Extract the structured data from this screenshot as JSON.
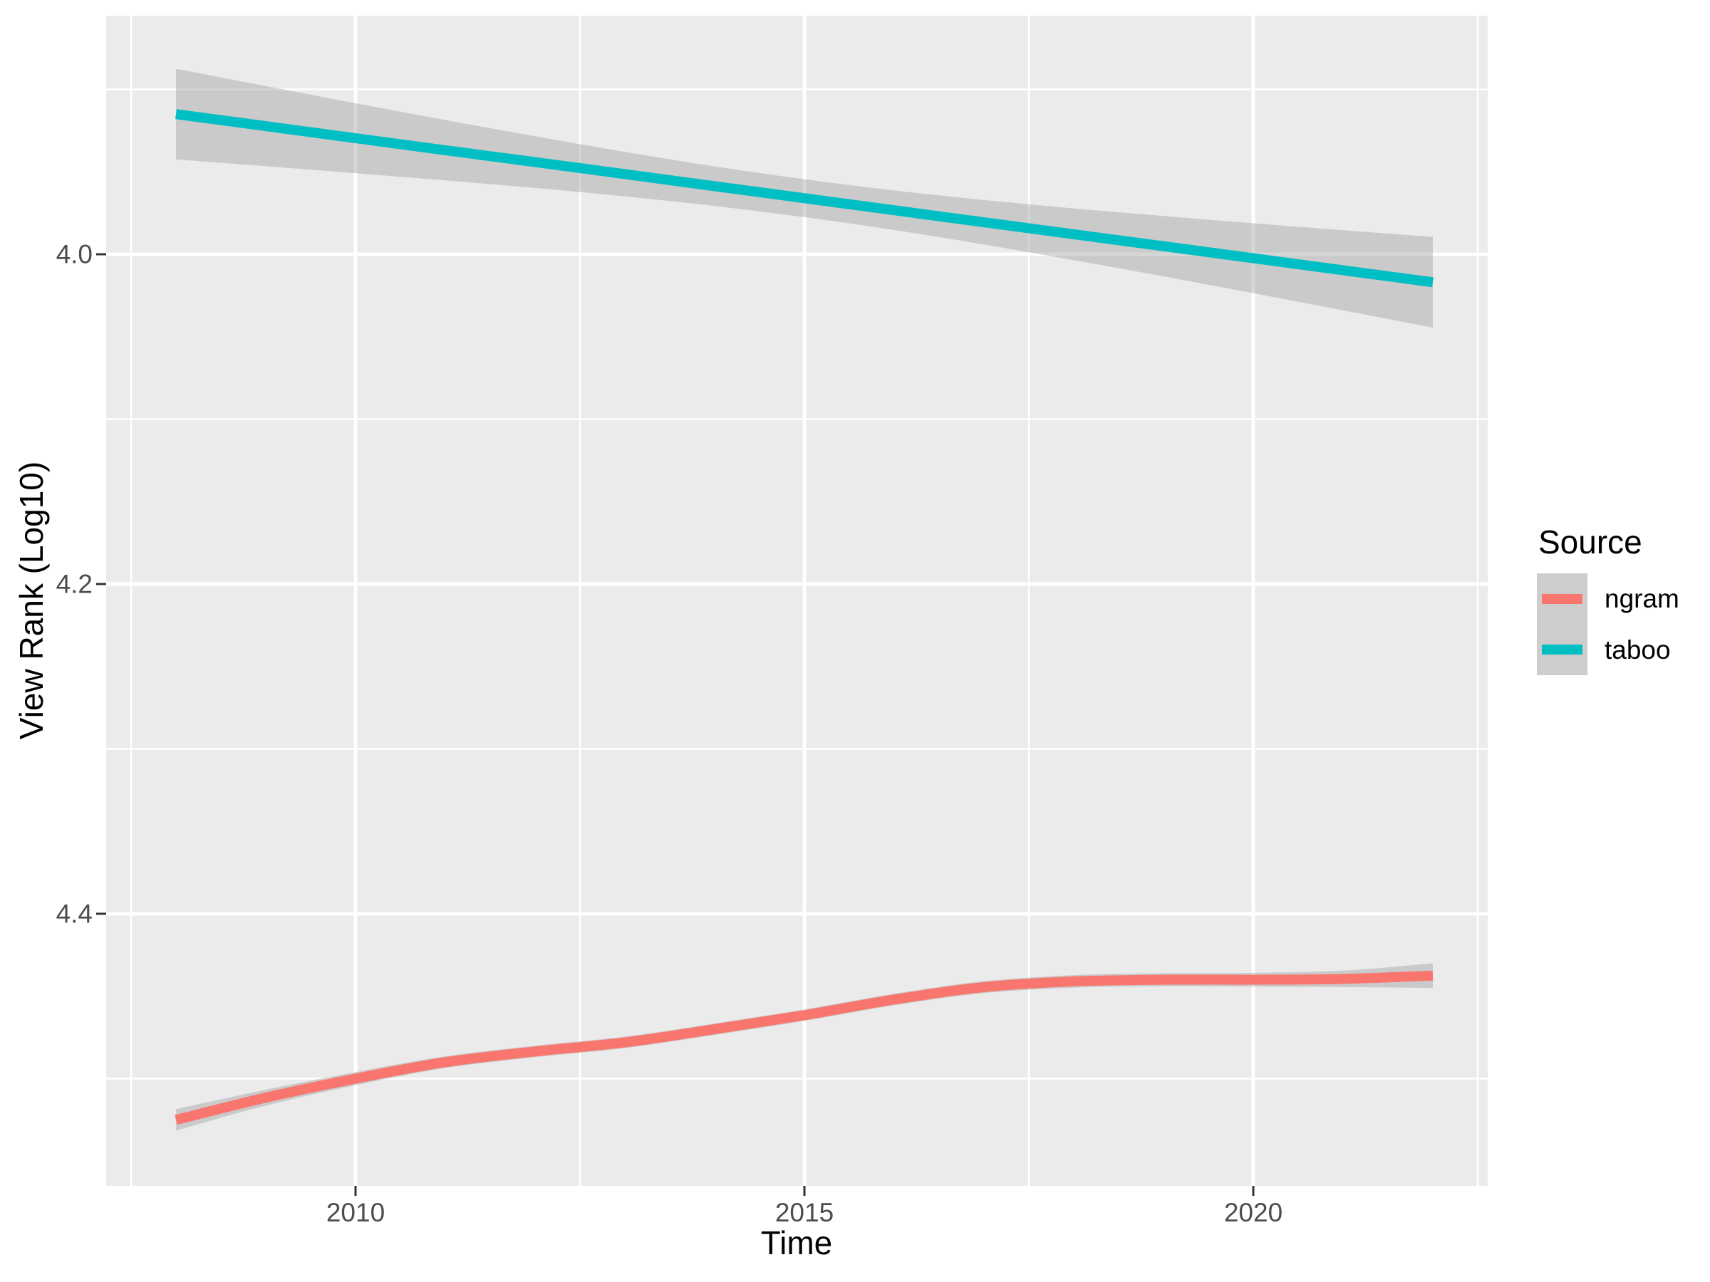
{
  "figure": {
    "background": "#FFFFFF",
    "panel_background": "#EBEBEB",
    "gridline_color": "#FFFFFF",
    "tick_mark_color": "#333333",
    "tick_label_color": "#4D4D4D",
    "title_color": "#000000"
  },
  "axes": {
    "x_title": "Time",
    "y_title": "View Rank (Log10)",
    "x_ticks": [
      {
        "value": 2010,
        "label": "2010"
      },
      {
        "value": 2015,
        "label": "2015"
      },
      {
        "value": 2020,
        "label": "2020"
      }
    ],
    "y_ticks": [
      {
        "value": 4.0,
        "label": "4.0"
      },
      {
        "value": 4.2,
        "label": "4.2"
      },
      {
        "value": 4.4,
        "label": "4.4"
      }
    ]
  },
  "legend": {
    "title": "Source",
    "key_fill": "#CDCDCD",
    "entries": [
      {
        "label": "ngram",
        "color": "#F8766D"
      },
      {
        "label": "taboo",
        "color": "#00BFC4"
      }
    ]
  },
  "chart_data": {
    "type": "line",
    "title": "",
    "xlabel": "Time",
    "ylabel": "View Rank (Log10)",
    "y_axis_reversed": true,
    "grid": true,
    "legend_position": "right",
    "x_ticks": [
      2010,
      2015,
      2020
    ],
    "y_ticks": [
      4.0,
      4.2,
      4.4
    ],
    "x_minor_gridlines": [
      2007.5,
      2012.5,
      2017.5,
      2022.5
    ],
    "y_minor_gridlines": [
      3.9,
      4.1,
      4.3,
      4.5
    ],
    "x_display_range": [
      2007.2,
      2022.6
    ],
    "y_display_range": [
      3.855,
      4.566
    ],
    "ribbon_fill": "rgba(153,153,153,0.4)",
    "series": [
      {
        "name": "ngram",
        "color": "#F8766D",
        "x": [
          2008,
          2009,
          2010,
          2011,
          2012,
          2013,
          2014,
          2015,
          2016,
          2017,
          2018,
          2019,
          2020,
          2021,
          2022
        ],
        "y": [
          4.525,
          4.5115,
          4.5,
          4.49,
          4.4835,
          4.478,
          4.47,
          4.4615,
          4.452,
          4.4445,
          4.441,
          4.44,
          4.44,
          4.4395,
          4.4375
        ],
        "ci_lower": [
          4.5185,
          4.5067,
          4.496,
          4.4864,
          4.48,
          4.4745,
          4.4665,
          4.458,
          4.4485,
          4.4409,
          4.4372,
          4.436,
          4.4358,
          4.4345,
          4.43
        ],
        "ci_upper": [
          4.5315,
          4.5163,
          4.504,
          4.4936,
          4.487,
          4.4815,
          4.4735,
          4.465,
          4.4555,
          4.4481,
          4.4448,
          4.444,
          4.4442,
          4.4445,
          4.445
        ]
      },
      {
        "name": "taboo",
        "color": "#00BFC4",
        "x": [
          2008,
          2009,
          2010,
          2011,
          2012,
          2013,
          2014,
          2015,
          2016,
          2017,
          2018,
          2019,
          2020,
          2021,
          2022
        ],
        "y": [
          3.915,
          3.9223,
          3.9296,
          3.9369,
          3.9441,
          3.9514,
          3.9587,
          3.966,
          3.9733,
          3.9806,
          3.9879,
          3.9951,
          4.0024,
          4.0097,
          4.017
        ],
        "ci_lower": [
          3.8875,
          3.898,
          3.9084,
          3.9186,
          3.9284,
          3.9379,
          3.9467,
          3.9545,
          3.9613,
          3.9671,
          3.9722,
          3.9768,
          3.9812,
          3.9854,
          3.9895
        ],
        "ci_upper": [
          3.9425,
          3.9466,
          3.9508,
          3.9552,
          3.9598,
          3.9649,
          3.9707,
          3.9775,
          3.9853,
          3.9941,
          4.0036,
          4.0134,
          4.0236,
          4.034,
          4.0445
        ]
      }
    ]
  }
}
